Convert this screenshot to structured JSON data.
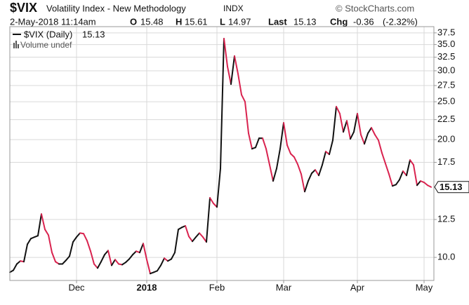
{
  "header": {
    "symbol": "$VIX",
    "name": "Volatility Index - New Methodology",
    "exchange": "INDX",
    "credit": "© StockCharts.com",
    "date": "2-May-2018 11:14am",
    "open_label": "O",
    "open": 15.48,
    "high_label": "H",
    "high": 15.61,
    "low_label": "L",
    "low": 14.97,
    "last_label": "Last",
    "last": 15.13,
    "chg_label": "Chg",
    "chg": -0.36,
    "chg_pct": "(-2.32%)"
  },
  "chart_data": {
    "type": "line",
    "log_scale": true,
    "grid": true,
    "legend": "top-left",
    "up_color": "#111111",
    "down_color": "#d9234f",
    "categories": [
      null,
      null,
      null,
      null,
      null,
      null,
      null,
      null,
      null,
      null,
      null,
      null,
      null,
      null,
      null,
      null,
      null,
      null,
      null,
      "Dec",
      null,
      null,
      null,
      null,
      null,
      null,
      null,
      null,
      null,
      null,
      null,
      null,
      null,
      null,
      null,
      null,
      null,
      null,
      null,
      "2018",
      null,
      null,
      null,
      null,
      null,
      null,
      null,
      null,
      null,
      null,
      null,
      null,
      null,
      null,
      null,
      null,
      null,
      null,
      null,
      "Feb",
      null,
      null,
      null,
      null,
      null,
      null,
      null,
      null,
      null,
      null,
      null,
      null,
      null,
      null,
      null,
      null,
      null,
      null,
      "Mar",
      null,
      null,
      null,
      null,
      null,
      null,
      null,
      null,
      null,
      null,
      null,
      null,
      null,
      null,
      null,
      null,
      null,
      null,
      null,
      null,
      "Apr",
      null,
      null,
      null,
      null,
      null,
      null,
      null,
      null,
      null,
      null,
      null,
      null,
      null,
      null,
      null,
      null,
      null,
      null,
      "May",
      null,
      null
    ],
    "series": [
      {
        "name": "$VIX (Daily)",
        "color": "#111111",
        "values": [
          9.16,
          9.27,
          9.62,
          9.79,
          9.75,
          10.8,
          11.17,
          11.27,
          11.36,
          12.91,
          11.79,
          11.4,
          10.29,
          9.75,
          9.62,
          9.62,
          9.83,
          10.07,
          10.95,
          11.27,
          11.54,
          11.5,
          11.03,
          10.37,
          9.62,
          9.39,
          9.75,
          10.16,
          10.41,
          9.54,
          9.87,
          9.62,
          9.58,
          9.71,
          9.9,
          10.16,
          10.37,
          10.29,
          10.85,
          9.87,
          9.09,
          9.16,
          9.24,
          9.54,
          9.95,
          9.79,
          9.9,
          10.29,
          11.79,
          11.93,
          12.04,
          11.31,
          10.99,
          11.27,
          11.54,
          11.27,
          10.95,
          14.2,
          13.74,
          13.45,
          16.88,
          36.27,
          30.75,
          27.72,
          32.72,
          29.48,
          26.05,
          25.0,
          20.76,
          18.95,
          19.1,
          20.17,
          20.17,
          18.95,
          17.24,
          15.68,
          16.88,
          18.95,
          22.09,
          19.36,
          18.41,
          18.05,
          17.3,
          16.33,
          14.73,
          15.68,
          16.41,
          16.74,
          16.2,
          17.24,
          18.65,
          18.34,
          19.93,
          24.29,
          23.31,
          20.93,
          22.35,
          20.09,
          20.93,
          23.31,
          20.59,
          19.51,
          20.76,
          21.45,
          20.59,
          19.93,
          18.49,
          17.37,
          16.33,
          15.23,
          15.35,
          15.8,
          16.61,
          16.2,
          17.74,
          17.24,
          15.29,
          15.68,
          15.55,
          15.29,
          15.13
        ]
      }
    ],
    "volume_label": "Volume undef",
    "ylim": [
      8.73,
      38.9
    ],
    "yticks": [
      {
        "value": 10,
        "label": "10.0"
      },
      12.5,
      17.5,
      {
        "value": 20,
        "label": "20.0"
      },
      22.5,
      {
        "value": 25,
        "label": "25.0"
      },
      27.5,
      {
        "value": 30,
        "label": "30.0"
      },
      32.5,
      {
        "value": 35,
        "label": "35.0"
      },
      37.5
    ]
  }
}
